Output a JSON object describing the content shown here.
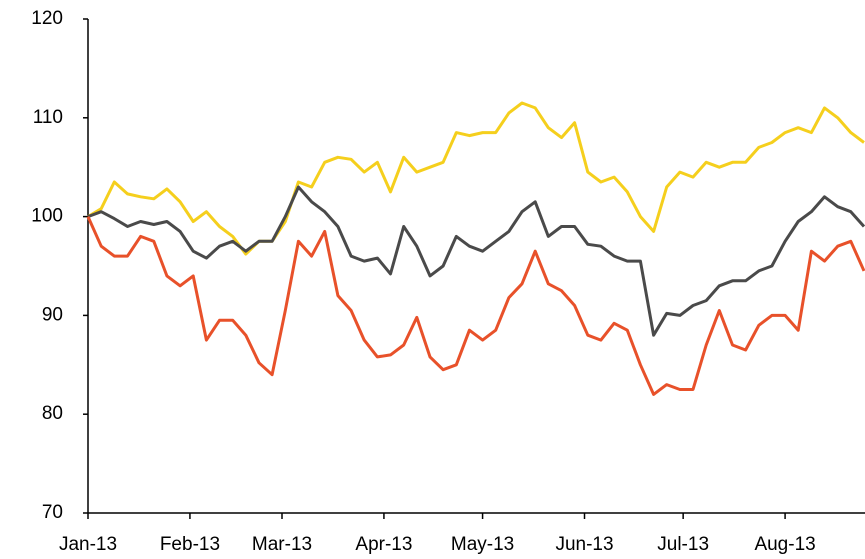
{
  "chart_data": {
    "type": "line",
    "x": [
      0,
      4,
      8,
      12,
      16,
      20,
      24,
      28,
      32,
      36,
      40,
      44,
      48,
      52,
      56,
      60,
      64,
      68,
      72,
      76,
      80,
      84,
      88,
      92,
      96,
      100,
      104,
      108,
      112,
      116,
      120,
      124,
      128,
      132,
      136,
      140,
      144,
      148,
      152,
      156,
      160,
      164,
      168,
      172,
      176,
      180,
      184,
      188,
      192,
      196,
      200,
      204,
      208,
      212,
      216,
      220,
      224,
      228,
      232,
      236
    ],
    "series": [
      {
        "color": "#f5cf1d",
        "values": [
          100,
          100.8,
          103.5,
          102.3,
          102,
          101.8,
          102.8,
          101.5,
          99.5,
          100.5,
          99,
          98,
          96.2,
          97.5,
          97.5,
          99.5,
          103.5,
          103,
          105.5,
          106,
          105.8,
          104.5,
          105.5,
          102.5,
          106,
          104.5,
          105,
          105.5,
          108.5,
          108.2,
          108.5,
          108.5,
          110.5,
          111.5,
          111,
          109,
          108,
          109.5,
          104.5,
          103.5,
          104,
          102.5,
          100,
          98.5,
          103,
          104.5,
          104,
          105.5,
          105,
          105.5,
          105.5,
          107,
          107.5,
          108.5,
          109,
          108.5,
          111,
          110,
          108.5,
          107.5
        ]
      },
      {
        "color": "#4a4a4a",
        "values": [
          100,
          100.5,
          99.8,
          99,
          99.5,
          99.2,
          99.5,
          98.5,
          96.5,
          95.8,
          97,
          97.5,
          96.5,
          97.5,
          97.5,
          100,
          103,
          101.5,
          100.5,
          99,
          96,
          95.5,
          95.8,
          94.2,
          99,
          97,
          94,
          95,
          98,
          97,
          96.5,
          97.5,
          98.5,
          100.5,
          101.5,
          98,
          99,
          99,
          97.2,
          97,
          96,
          95.5,
          95.5,
          88,
          90.2,
          90,
          91,
          91.5,
          93,
          93.5,
          93.5,
          94.5,
          95,
          97.5,
          99.5,
          100.5,
          102,
          101,
          100.5,
          99
        ]
      },
      {
        "color": "#e8512a",
        "values": [
          100,
          97,
          96,
          96,
          98,
          97.5,
          94,
          93,
          94,
          87.5,
          89.5,
          89.5,
          88,
          85.2,
          84,
          90.5,
          97.5,
          96,
          98.5,
          92,
          90.5,
          87.5,
          85.8,
          86,
          87,
          89.8,
          85.8,
          84.5,
          85,
          88.5,
          87.5,
          88.5,
          91.8,
          93.2,
          96.5,
          93.2,
          92.5,
          91,
          88,
          87.5,
          89.2,
          88.5,
          85,
          82,
          83,
          82.5,
          82.5,
          87,
          90.5,
          87,
          86.5,
          89,
          90,
          90,
          88.5,
          96.5,
          95.5,
          97,
          97.5,
          94.5
        ]
      }
    ],
    "xlim": [
      0,
      236
    ],
    "xticks": [
      {
        "value": 0,
        "label": "Jan-13"
      },
      {
        "value": 31,
        "label": "Feb-13"
      },
      {
        "value": 59,
        "label": "Mar-13"
      },
      {
        "value": 90,
        "label": "Apr-13"
      },
      {
        "value": 120,
        "label": "May-13"
      },
      {
        "value": 151,
        "label": "Jun-13"
      },
      {
        "value": 181,
        "label": "Jul-13"
      },
      {
        "value": 212,
        "label": "Aug-13"
      }
    ],
    "ylim": [
      70,
      120
    ],
    "yticks": [
      70,
      80,
      90,
      100,
      110,
      120
    ],
    "grid": false
  }
}
